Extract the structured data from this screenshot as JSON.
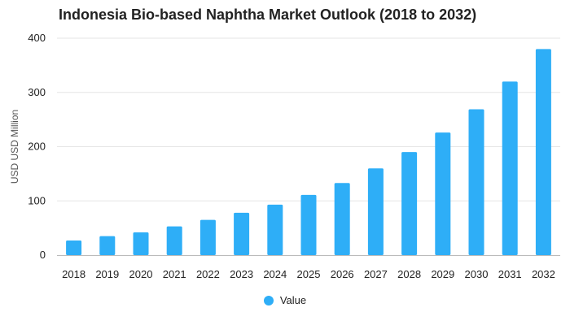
{
  "colors": {
    "bar": "#2EAEF7",
    "grid": "#E6E6E6",
    "axis": "#BBBBBB"
  },
  "chart_data": {
    "type": "bar",
    "title": "Indonesia Bio-based Naphtha Market Outlook (2018 to 2032)",
    "xlabel": "",
    "ylabel": "USD USD Million",
    "categories": [
      "2018",
      "2019",
      "2020",
      "2021",
      "2022",
      "2023",
      "2024",
      "2025",
      "2026",
      "2027",
      "2028",
      "2029",
      "2030",
      "2031",
      "2032"
    ],
    "series": [
      {
        "name": "Value",
        "values": [
          27,
          35,
          42,
          53,
          65,
          78,
          93,
          111,
          133,
          160,
          190,
          226,
          269,
          320,
          380
        ]
      }
    ],
    "ylim": [
      0,
      400
    ],
    "yticks": [
      "0",
      "100",
      "200",
      "300",
      "400"
    ],
    "grid": true,
    "legend": "bottom-center"
  }
}
